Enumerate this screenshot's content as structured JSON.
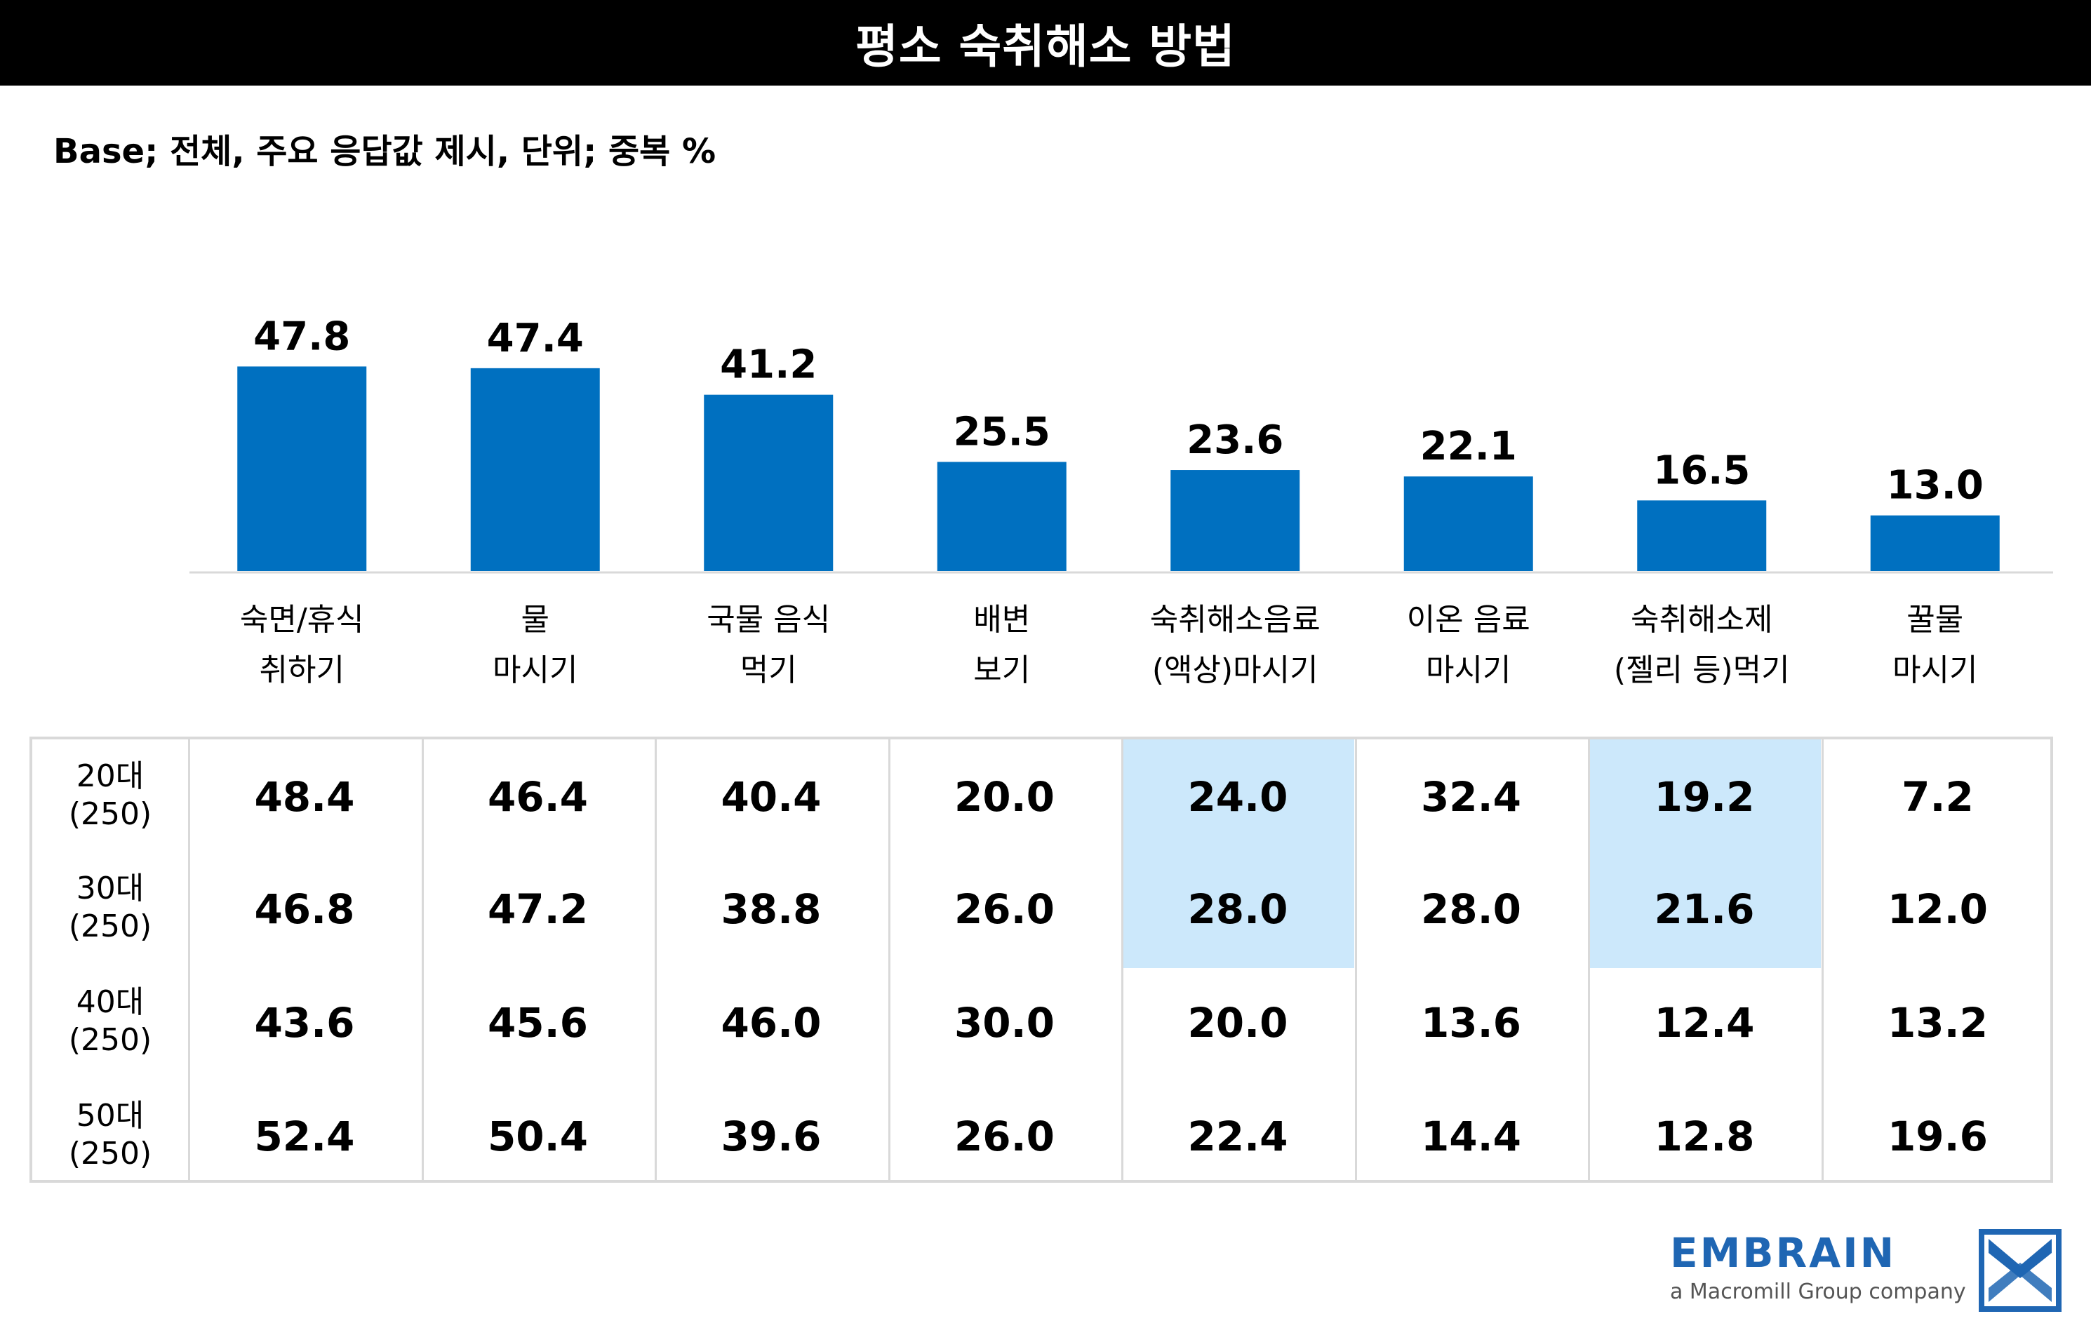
{
  "title": "평소 숙취해소 방법",
  "base_note": "Base; 전체, 주요 응답값 제시, 단위; 중복 %",
  "colors": {
    "bar": "#0070c0",
    "highlight": "#cce8fb",
    "title_bg": "#000000",
    "brand": "#1f66b3"
  },
  "chart_data": {
    "type": "bar",
    "title": "평소 숙취해소 방법",
    "categories": [
      [
        "숙면/휴식",
        "취하기"
      ],
      [
        "물",
        "마시기"
      ],
      [
        "국물 음식",
        "먹기"
      ],
      [
        "배변",
        "보기"
      ],
      [
        "숙취해소음료",
        "(액상)마시기"
      ],
      [
        "이온 음료",
        "마시기"
      ],
      [
        "숙취해소제",
        "(젤리 등)먹기"
      ],
      [
        "꿀물",
        "마시기"
      ]
    ],
    "values": [
      47.8,
      47.4,
      41.2,
      25.5,
      23.6,
      22.1,
      16.5,
      13.0
    ],
    "value_labels": [
      "47.8",
      "47.4",
      "41.2",
      "25.5",
      "23.6",
      "22.1",
      "16.5",
      "13.0"
    ],
    "ylim": [
      0,
      50
    ],
    "grid": false,
    "legend": "none"
  },
  "table": {
    "rows": [
      {
        "label": [
          "20대",
          "(250)"
        ],
        "values": [
          "48.4",
          "46.4",
          "40.4",
          "20.0",
          "24.0",
          "32.4",
          "19.2",
          "7.2"
        ]
      },
      {
        "label": [
          "30대",
          "(250)"
        ],
        "values": [
          "46.8",
          "47.2",
          "38.8",
          "26.0",
          "28.0",
          "28.0",
          "21.6",
          "12.0"
        ]
      },
      {
        "label": [
          "40대",
          "(250)"
        ],
        "values": [
          "43.6",
          "45.6",
          "46.0",
          "30.0",
          "20.0",
          "13.6",
          "12.4",
          "13.2"
        ]
      },
      {
        "label": [
          "50대",
          "(250)"
        ],
        "values": [
          "52.4",
          "50.4",
          "39.6",
          "26.0",
          "22.4",
          "14.4",
          "12.8",
          "19.6"
        ]
      }
    ],
    "highlighted_cells": [
      [
        0,
        4
      ],
      [
        1,
        4
      ],
      [
        0,
        6
      ],
      [
        1,
        6
      ]
    ]
  },
  "logo": {
    "wordmark": "EMBRAIN",
    "tagline": "a Macromill Group company",
    "icon": "embrain-logo-icon"
  }
}
